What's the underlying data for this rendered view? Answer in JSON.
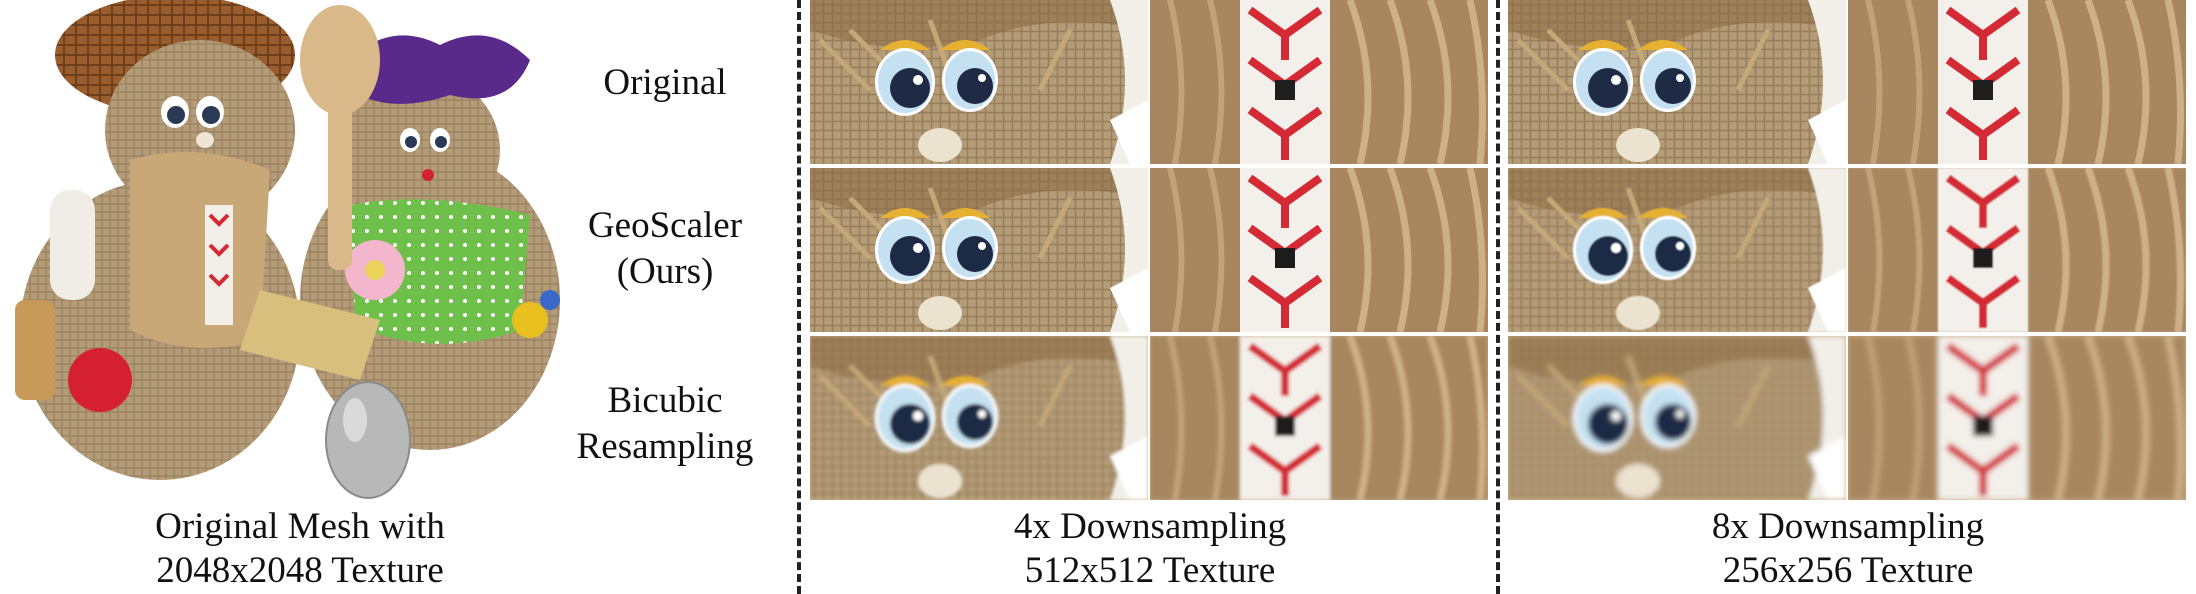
{
  "labels": {
    "row_original": "Original",
    "row_geoscaler_1": "GeoScaler",
    "row_geoscaler_2": "(Ours)",
    "row_bicubic_1": "Bicubic",
    "row_bicubic_2": "Resampling"
  },
  "captions": {
    "mesh_1": "Original Mesh with",
    "mesh_2": "2048x2048 Texture",
    "x4_1": "4x Downsampling",
    "x4_2": "512x512 Texture",
    "x8_1": "8x Downsampling",
    "x8_2": "256x256 Texture"
  },
  "colors": {
    "burlap": "#b59c78",
    "straw": "#c8a877",
    "embroidery_red": "#d42a35",
    "eye_blue": "#5aa8d8",
    "bow_purple": "#5a2a8a",
    "dress_green": "#6fc04a",
    "spoon": "#d9b88a"
  }
}
